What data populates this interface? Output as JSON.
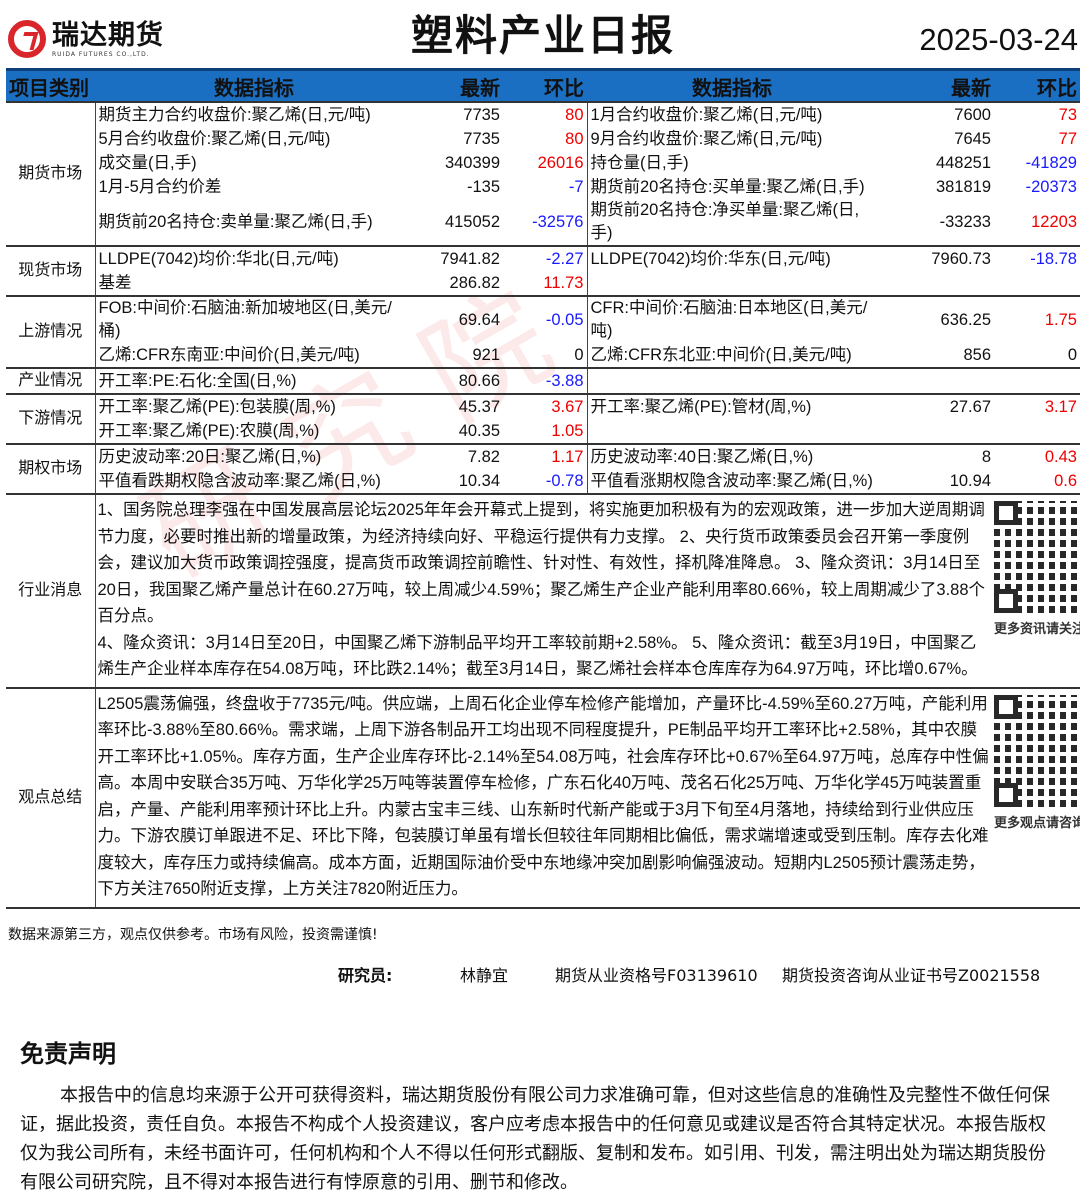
{
  "header": {
    "company": "瑞达期货",
    "company_en": "RUIDA FUTURES CO.,LTD.",
    "title": "塑料产业日报",
    "date": "2025-03-24"
  },
  "columns": [
    "项目类别",
    "数据指标",
    "最新",
    "环比",
    "数据指标",
    "最新",
    "环比"
  ],
  "sections": [
    {
      "category": "期货市场",
      "rows": [
        [
          "期货主力合约收盘价:聚乙烯(日,元/吨)",
          "7735",
          "80",
          "1月合约收盘价:聚乙烯(日,元/吨)",
          "7600",
          "73"
        ],
        [
          "5月合约收盘价:聚乙烯(日,元/吨)",
          "7735",
          "80",
          "9月合约收盘价:聚乙烯(日,元/吨)",
          "7645",
          "77"
        ],
        [
          "成交量(日,手)",
          "340399",
          "26016",
          "持仓量(日,手)",
          "448251",
          "-41829"
        ],
        [
          "1月-5月合约价差",
          "-135",
          "-7",
          "期货前20名持仓:买单量:聚乙烯(日,手)",
          "381819",
          "-20373"
        ],
        [
          "期货前20名持仓:卖单量:聚乙烯(日,手)",
          "415052",
          "-32576",
          "期货前20名持仓:净买单量:聚乙烯(日,手)",
          "-33233",
          "12203"
        ]
      ]
    },
    {
      "category": "现货市场",
      "rows": [
        [
          "LLDPE(7042)均价:华北(日,元/吨)",
          "7941.82",
          "-2.27",
          "LLDPE(7042)均价:华东(日,元/吨)",
          "7960.73",
          "-18.78"
        ],
        [
          "基差",
          "286.82",
          "11.73",
          "",
          "",
          ""
        ]
      ]
    },
    {
      "category": "上游情况",
      "rows": [
        [
          "FOB:中间价:石脑油:新加坡地区(日,美元/桶)",
          "69.64",
          "-0.05",
          "CFR:中间价:石脑油:日本地区(日,美元/吨)",
          "636.25",
          "1.75"
        ],
        [
          "乙烯:CFR东南亚:中间价(日,美元/吨)",
          "921",
          "0",
          "乙烯:CFR东北亚:中间价(日,美元/吨)",
          "856",
          "0"
        ]
      ]
    },
    {
      "category": "产业情况",
      "rows": [
        [
          "开工率:PE:石化:全国(日,%)",
          "80.66",
          "-3.88",
          "",
          "",
          ""
        ]
      ]
    },
    {
      "category": "下游情况",
      "rows": [
        [
          "开工率:聚乙烯(PE):包装膜(周,%)",
          "45.37",
          "3.67",
          "开工率:聚乙烯(PE):管材(周,%)",
          "27.67",
          "3.17"
        ],
        [
          "开工率:聚乙烯(PE):农膜(周,%)",
          "40.35",
          "1.05",
          "",
          "",
          ""
        ]
      ]
    },
    {
      "category": "期权市场",
      "rows": [
        [
          "历史波动率:20日:聚乙烯(日,%)",
          "7.82",
          "1.17",
          "历史波动率:40日:聚乙烯(日,%)",
          "8",
          "0.43"
        ],
        [
          "平值看跌期权隐含波动率:聚乙烯(日,%)",
          "10.34",
          "-0.78",
          "平值看涨期权隐含波动率:聚乙烯(日,%)",
          "10.94",
          "0.6"
        ]
      ]
    }
  ],
  "news": {
    "category": "行业消息",
    "text1": "1、国务院总理李强在中国发展高层论坛2025年年会开幕式上提到，将实施更加积极有为的宏观政策，进一步加大逆周期调节力度，必要时推出新的增量政策，为经济持续向好、平稳运行提供有力支撑。 2、央行货币政策委员会召开第一季度例会，建议加大货币政策调控强度，提高货币政策调控前瞻性、针对性、有效性，择机降准降息。 3、隆众资讯：3月14日至20日，我国聚乙烯产量总计在60.27万吨，较上周减少4.59%；聚乙烯生产企业产能利用率80.66%，较上周期减少了3.88个百分点。",
    "text2": "4、隆众资讯：3月14日至20日，中国聚乙烯下游制品平均开工率较前期+2.58%。 5、隆众资讯：截至3月19日，中国聚乙烯生产企业样本库存在54.08万吨，环比跌2.14%；截至3月14日，聚乙烯社会样本仓库库存为64.97万吨，环比增0.67%。",
    "qr_caption": "更多资讯请关注!"
  },
  "view": {
    "category": "观点总结",
    "text": "L2505震荡偏强，终盘收于7735元/吨。供应端，上周石化企业停车检修产能增加，产量环比-4.59%至60.27万吨，产能利用率环比-3.88%至80.66%。需求端，上周下游各制品开工均出现不同程度提升，PE制品平均开工率环比+2.58%，其中农膜开工率环比+1.05%。库存方面，生产企业库存环比-2.14%至54.08万吨，社会库存环比+0.67%至64.97万吨，总库存中性偏高。本周中安联合35万吨、万华化学25万吨等装置停车检修，广东石化40万吨、茂名石化25万吨、万华化学45万吨装置重启，产量、产能利用率预计环比上升。内蒙古宝丰三线、山东新时代新产能或于3月下旬至4月落地，持续给到行业供应压力。下游农膜订单跟进不足、环比下降，包装膜订单虽有增长但较往年同期相比偏低，需求端增速或受到压制。库存去化难度较大，库存压力或持续偏高。成本方面，近期国际油价受中东地缘冲突加剧影响偏强波动。短期内L2505预计震荡走势，下方关注7650附近支撑，上方关注7820附近压力。",
    "qr_caption": "更多观点请咨询!"
  },
  "footnote": "数据来源第三方，观点仅供参考。市场有风险，投资需谨慎!",
  "researcher": {
    "label": "研究员:",
    "name": "林静宜",
    "qual1": "期货从业资格号F03139610",
    "qual2": "期货投资咨询从业证书号Z0021558"
  },
  "disclaimer": {
    "title": "免责声明",
    "text": "本报告中的信息均来源于公开可获得资料，瑞达期货股份有限公司力求准确可靠，但对这些信息的准确性及完整性不做任何保证，据此投资，责任自负。本报告不构成个人投资建议，客户应考虑本报告中的任何意见或建议是否符合其特定状况。本报告版权仅为我公司所有，未经书面许可，任何机构和个人不得以任何形式翻版、复制和发布。如引用、刊发，需注明出处为瑞达期货股份有限公司研究院，且不得对本报告进行有悖原意的引用、删节和修改。"
  },
  "colors": {
    "header_bg": "#1b6fc2",
    "positive": "#e00000",
    "negative": "#1a1aff",
    "logo": "#d9262b"
  }
}
